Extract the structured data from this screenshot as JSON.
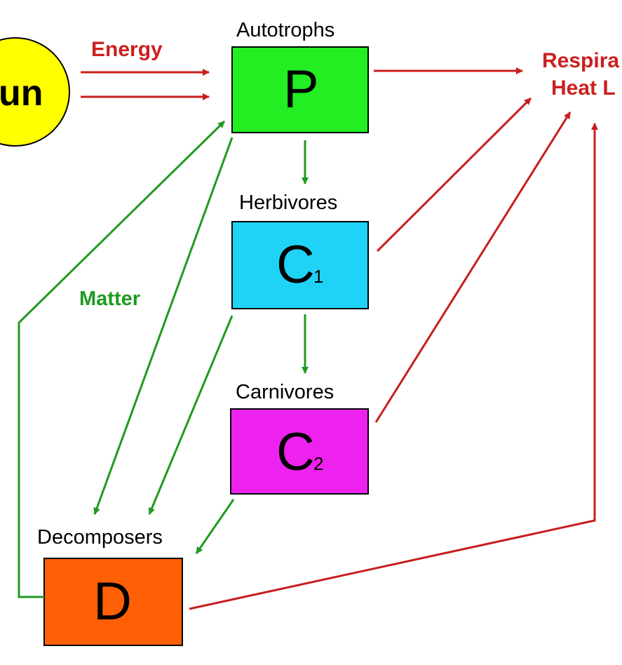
{
  "sun": {
    "label": "un",
    "color": "#ffff00"
  },
  "labels": {
    "energy": "Energy",
    "matter": "Matter",
    "respiration_line1": "Respira",
    "respiration_line2": "Heat L"
  },
  "nodes": {
    "autotrophs": {
      "title": "Autotrophs",
      "letter": "P",
      "sub": "",
      "color": "#22ee22"
    },
    "herbivores": {
      "title": "Herbivores",
      "letter": "C",
      "sub": "1",
      "color": "#1fd3f7"
    },
    "carnivores": {
      "title": "Carnivores",
      "letter": "C",
      "sub": "2",
      "color": "#ee22ee"
    },
    "decomposers": {
      "title": "Decomposers",
      "letter": "D",
      "sub": "",
      "color": "#ff5f05"
    }
  },
  "colors": {
    "energy_arrows": "#c81e1e",
    "matter_arrows": "#1f9a1f"
  }
}
